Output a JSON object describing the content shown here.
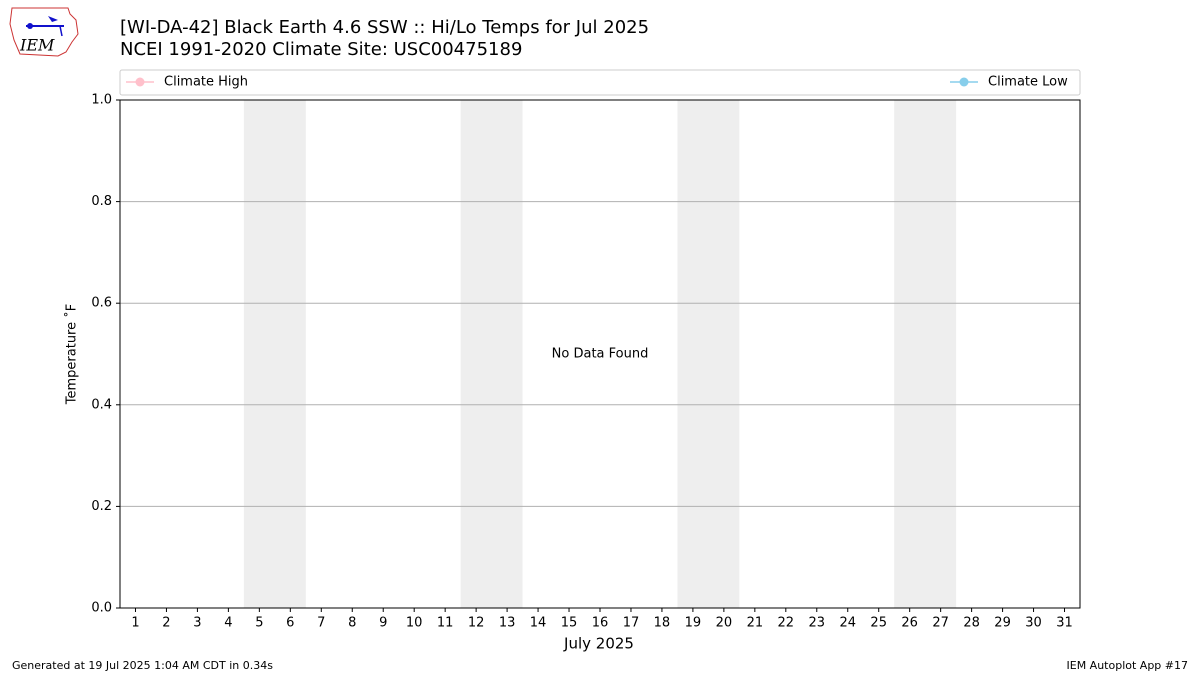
{
  "logo_text": "IEM",
  "footer_left": "Generated at 19 Jul 2025 1:04 AM CDT in 0.34s",
  "footer_right": "IEM Autoplot App #17",
  "chart_data": {
    "type": "line",
    "title": "[WI-DA-42] Black Earth 4.6 SSW :: Hi/Lo Temps for Jul 2025",
    "subtitle": "NCEI 1991-2020 Climate Site: USC00475189",
    "x_label": "July 2025",
    "y_label": "Temperature ˚F",
    "series": [
      {
        "name": "Climate High",
        "color": "pink"
      },
      {
        "name": "Climate Low",
        "color": "skyblue"
      }
    ],
    "xlim": [
      0.5,
      31.5
    ],
    "xticks": [
      1,
      2,
      3,
      4,
      5,
      6,
      7,
      8,
      9,
      10,
      11,
      12,
      13,
      14,
      15,
      16,
      17,
      18,
      19,
      20,
      21,
      22,
      23,
      24,
      25,
      26,
      27,
      28,
      29,
      30,
      31
    ],
    "ylim": [
      0,
      1
    ],
    "yticks": [
      {
        "value": 0,
        "label": "0.0"
      },
      0.2,
      0.4,
      0.6,
      0.8,
      {
        "value": 1,
        "label": "1.0"
      }
    ],
    "grid": true,
    "shaded_spans": [
      [
        4.5,
        6.5
      ],
      [
        11.5,
        13.5
      ],
      [
        18.5,
        20.5
      ],
      [
        25.5,
        27.5
      ]
    ],
    "shade_color": "#eeeeee",
    "annotations": [
      {
        "text": "No Data Found",
        "x": 16,
        "y": 0.5
      }
    ]
  }
}
